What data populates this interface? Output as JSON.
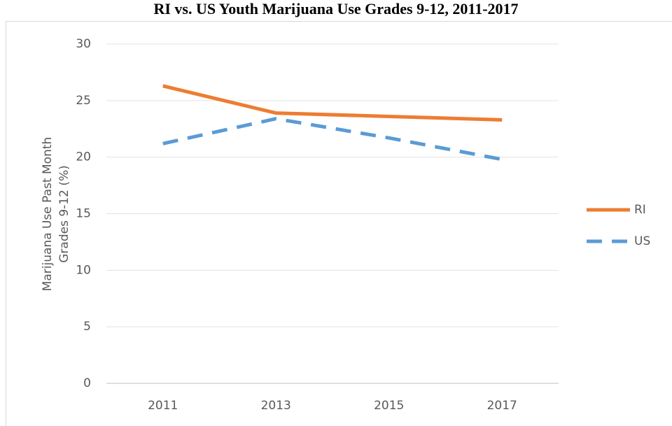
{
  "chart_data": {
    "type": "line",
    "title": "RI vs. US Youth Marijuana Use Grades 9-12, 2011-2017",
    "y_label": [
      "Marijuana Use Past Month",
      "Grades 9-12 (%)"
    ],
    "categories": [
      "2011",
      "2013",
      "2015",
      "2017"
    ],
    "series": [
      {
        "name": "RI",
        "color": "#ed7d31",
        "dash": false,
        "values": [
          26.3,
          23.9,
          23.6,
          23.3
        ]
      },
      {
        "name": "US",
        "color": "#5b9bd5",
        "dash": true,
        "values": [
          21.2,
          23.4,
          21.7,
          19.8
        ]
      }
    ],
    "ylim": [
      0,
      30
    ],
    "yticks": [
      0,
      5,
      10,
      15,
      20,
      25,
      30
    ],
    "grid": true,
    "legend": "right"
  }
}
